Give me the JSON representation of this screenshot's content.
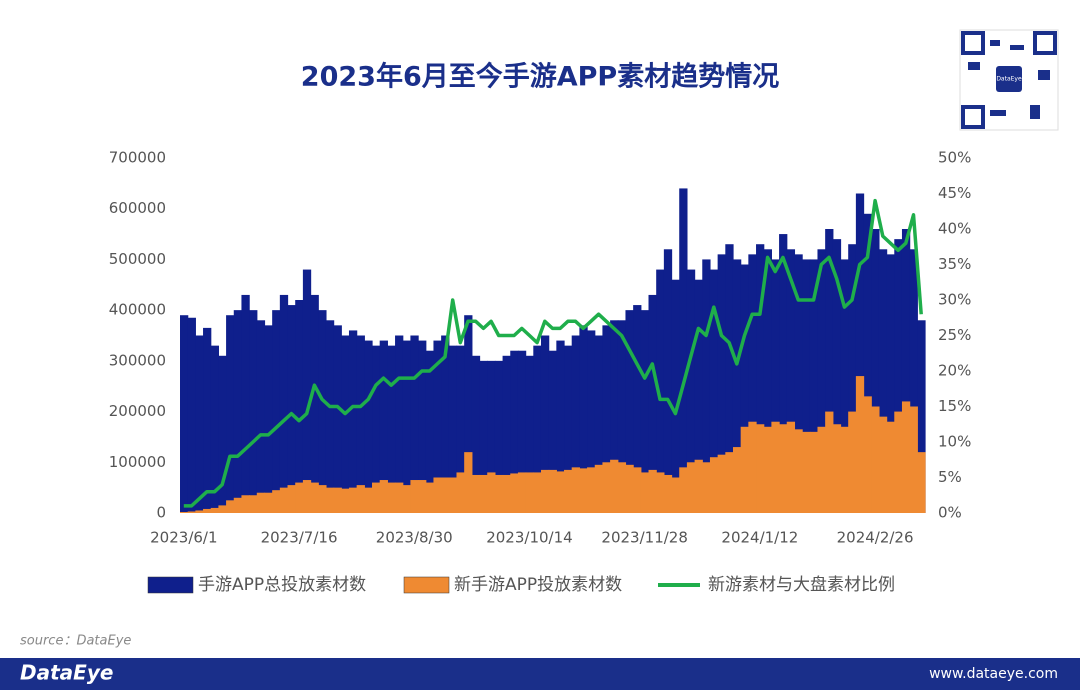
{
  "chart_data": {
    "type": "bar_line",
    "title": "2023年6月至今手游APP素材趋势情况",
    "categories": [
      "2023/6/1",
      null,
      null,
      null,
      null,
      null,
      null,
      null,
      null,
      null,
      null,
      null,
      null,
      null,
      null,
      "2023/7/16",
      null,
      null,
      null,
      null,
      null,
      null,
      null,
      null,
      null,
      null,
      null,
      null,
      null,
      null,
      "2023/8/30",
      null,
      null,
      null,
      null,
      null,
      null,
      null,
      null,
      null,
      null,
      null,
      null,
      null,
      null,
      "2023/10/14",
      null,
      null,
      null,
      null,
      null,
      null,
      null,
      null,
      null,
      null,
      null,
      null,
      null,
      null,
      "2023/11/28",
      null,
      null,
      null,
      null,
      null,
      null,
      null,
      null,
      null,
      null,
      null,
      null,
      null,
      null,
      "2024/1/12",
      null,
      null,
      null,
      null,
      null,
      null,
      null,
      null,
      null,
      null,
      null,
      null,
      null,
      null,
      "2024/2/26",
      null,
      null,
      null,
      null,
      null,
      null
    ],
    "series": [
      {
        "name": "手游APP总投放素材数",
        "type": "bar",
        "color": "#0f1f8c",
        "values": [
          390000,
          385000,
          350000,
          365000,
          330000,
          310000,
          390000,
          400000,
          430000,
          400000,
          380000,
          370000,
          400000,
          430000,
          410000,
          420000,
          480000,
          430000,
          400000,
          380000,
          370000,
          350000,
          360000,
          350000,
          340000,
          330000,
          340000,
          330000,
          350000,
          340000,
          350000,
          340000,
          320000,
          340000,
          350000,
          330000,
          330000,
          390000,
          310000,
          300000,
          300000,
          300000,
          310000,
          320000,
          320000,
          310000,
          330000,
          350000,
          320000,
          340000,
          330000,
          350000,
          370000,
          360000,
          350000,
          370000,
          380000,
          380000,
          400000,
          410000,
          400000,
          430000,
          480000,
          520000,
          460000,
          640000,
          480000,
          460000,
          500000,
          480000,
          510000,
          530000,
          500000,
          490000,
          510000,
          530000,
          520000,
          500000,
          550000,
          520000,
          510000,
          500000,
          500000,
          520000,
          560000,
          540000,
          500000,
          530000,
          630000,
          590000,
          560000,
          520000,
          510000,
          540000,
          560000,
          520000,
          380000
        ]
      },
      {
        "name": "新手游APP投放素材数",
        "type": "bar",
        "color": "#ef8a32",
        "values": [
          2000,
          3000,
          5000,
          8000,
          10000,
          15000,
          25000,
          30000,
          35000,
          35000,
          40000,
          40000,
          45000,
          50000,
          55000,
          60000,
          65000,
          60000,
          55000,
          50000,
          50000,
          48000,
          50000,
          55000,
          50000,
          60000,
          65000,
          60000,
          60000,
          55000,
          65000,
          65000,
          60000,
          70000,
          70000,
          70000,
          80000,
          120000,
          75000,
          75000,
          80000,
          75000,
          75000,
          78000,
          80000,
          80000,
          80000,
          85000,
          85000,
          82000,
          85000,
          90000,
          88000,
          90000,
          95000,
          100000,
          105000,
          100000,
          95000,
          90000,
          80000,
          85000,
          80000,
          75000,
          70000,
          90000,
          100000,
          105000,
          100000,
          110000,
          115000,
          120000,
          130000,
          170000,
          180000,
          175000,
          170000,
          180000,
          175000,
          180000,
          165000,
          160000,
          160000,
          170000,
          200000,
          175000,
          170000,
          200000,
          270000,
          230000,
          210000,
          190000,
          180000,
          200000,
          220000,
          210000,
          120000
        ]
      },
      {
        "name": "新游素材与大盘素材比例",
        "type": "line",
        "axis": "y2",
        "color": "#1fae4b",
        "values": [
          1,
          1,
          2,
          3,
          3,
          4,
          8,
          8,
          9,
          10,
          11,
          11,
          12,
          13,
          14,
          13,
          14,
          18,
          16,
          15,
          15,
          14,
          15,
          15,
          16,
          18,
          19,
          18,
          19,
          19,
          19,
          20,
          20,
          21,
          22,
          30,
          24,
          27,
          27,
          26,
          27,
          25,
          25,
          25,
          26,
          25,
          24,
          27,
          26,
          26,
          27,
          27,
          26,
          27,
          28,
          27,
          26,
          25,
          23,
          21,
          19,
          21,
          16,
          16,
          14,
          18,
          22,
          26,
          25,
          29,
          25,
          24,
          21,
          25,
          28,
          28,
          36,
          34,
          36,
          33,
          30,
          30,
          30,
          35,
          36,
          33,
          29,
          30,
          35,
          36,
          44,
          39,
          38,
          37,
          38,
          42,
          28
        ]
      }
    ],
    "ylim": [
      0,
      700000
    ],
    "yticks": [
      0,
      100000,
      200000,
      300000,
      400000,
      500000,
      600000,
      700000
    ],
    "y2lim": [
      0,
      50
    ],
    "y2ticks": [
      {
        "value": 0,
        "label": "0%"
      },
      {
        "value": 5,
        "label": "5%"
      },
      {
        "value": 10,
        "label": "10%"
      },
      {
        "value": 15,
        "label": "15%"
      },
      {
        "value": 20,
        "label": "20%"
      },
      {
        "value": 25,
        "label": "25%"
      },
      {
        "value": 30,
        "label": "30%"
      },
      {
        "value": 35,
        "label": "35%"
      },
      {
        "value": 40,
        "label": "40%"
      },
      {
        "value": 45,
        "label": "45%"
      },
      {
        "value": 50,
        "label": "50%"
      }
    ],
    "grid": false,
    "legend": "bottom"
  },
  "source": "source：DataEye",
  "footer": {
    "brand": "DataEye",
    "url": "www.dataeye.com"
  },
  "qr_label": "DataEye"
}
